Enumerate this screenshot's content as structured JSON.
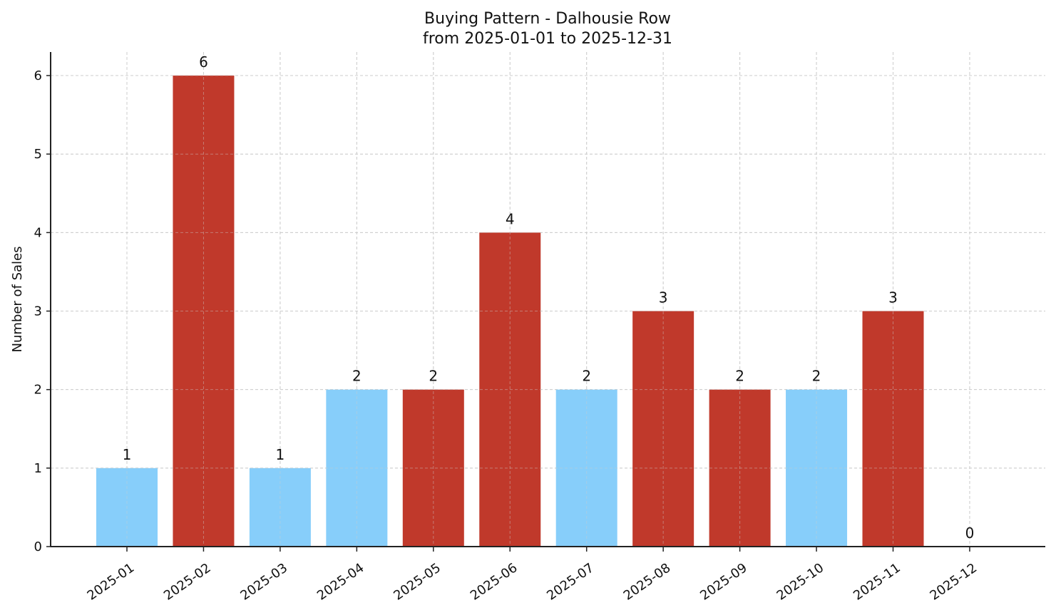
{
  "chart_data": {
    "type": "bar",
    "title": "Buying Pattern - Dalhousie Row",
    "subtitle": "from 2025-01-01 to 2025-12-31",
    "xlabel": "",
    "ylabel": "Number of Sales",
    "categories": [
      "2025-01",
      "2025-02",
      "2025-03",
      "2025-04",
      "2025-05",
      "2025-06",
      "2025-07",
      "2025-08",
      "2025-09",
      "2025-10",
      "2025-11",
      "2025-12"
    ],
    "values": [
      1,
      6,
      1,
      2,
      2,
      4,
      2,
      3,
      2,
      2,
      3,
      0
    ],
    "bar_colors": [
      "#87CEFA",
      "#C0392B",
      "#87CEFA",
      "#87CEFA",
      "#C0392B",
      "#C0392B",
      "#87CEFA",
      "#C0392B",
      "#C0392B",
      "#87CEFA",
      "#C0392B",
      "#87CEFA"
    ],
    "y_ticks": [
      0,
      1,
      2,
      3,
      4,
      5,
      6
    ],
    "ylim": [
      0,
      6.3
    ],
    "grid": true,
    "legend": null,
    "data_labels": true,
    "x_tick_rotation": 35
  },
  "colors": {
    "low": "#87CEFA",
    "high": "#C0392B",
    "axis": "#222222",
    "grid": "#cccccc"
  }
}
